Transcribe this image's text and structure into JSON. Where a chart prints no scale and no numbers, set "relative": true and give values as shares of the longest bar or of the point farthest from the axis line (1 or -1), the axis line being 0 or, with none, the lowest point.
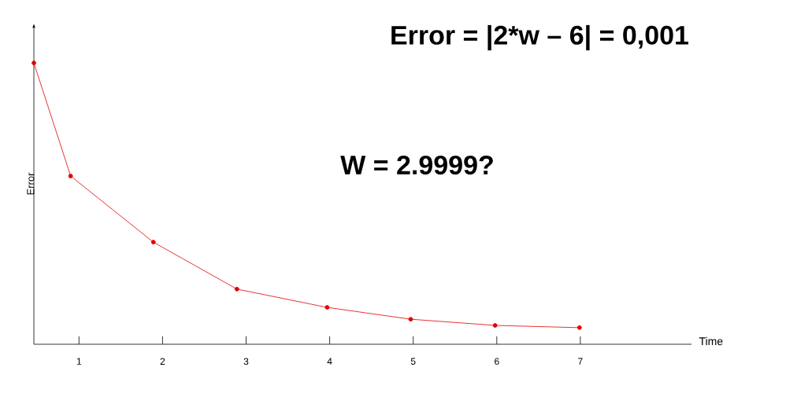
{
  "chart_data": {
    "type": "line",
    "xlabel": "Time",
    "ylabel": "Error",
    "annotations": [
      "Error = |2*w – 6| = 0,001",
      "W = 2.9999?"
    ],
    "x": [
      0.46,
      0.9,
      1.89,
      2.89,
      3.97,
      4.97,
      5.98,
      6.99
    ],
    "series": [
      {
        "color": "#e00000",
        "values": [
          1,
          0.598,
          0.363,
          0.196,
          0.131,
          0.089,
          0.067,
          0.059
        ]
      }
    ],
    "relative": true,
    "xlim": [
      0.46,
      8.33
    ],
    "xticks": [
      1,
      2,
      3,
      4,
      5,
      6,
      7
    ],
    "marker": "circle",
    "line_style": "solid",
    "grid": false
  }
}
